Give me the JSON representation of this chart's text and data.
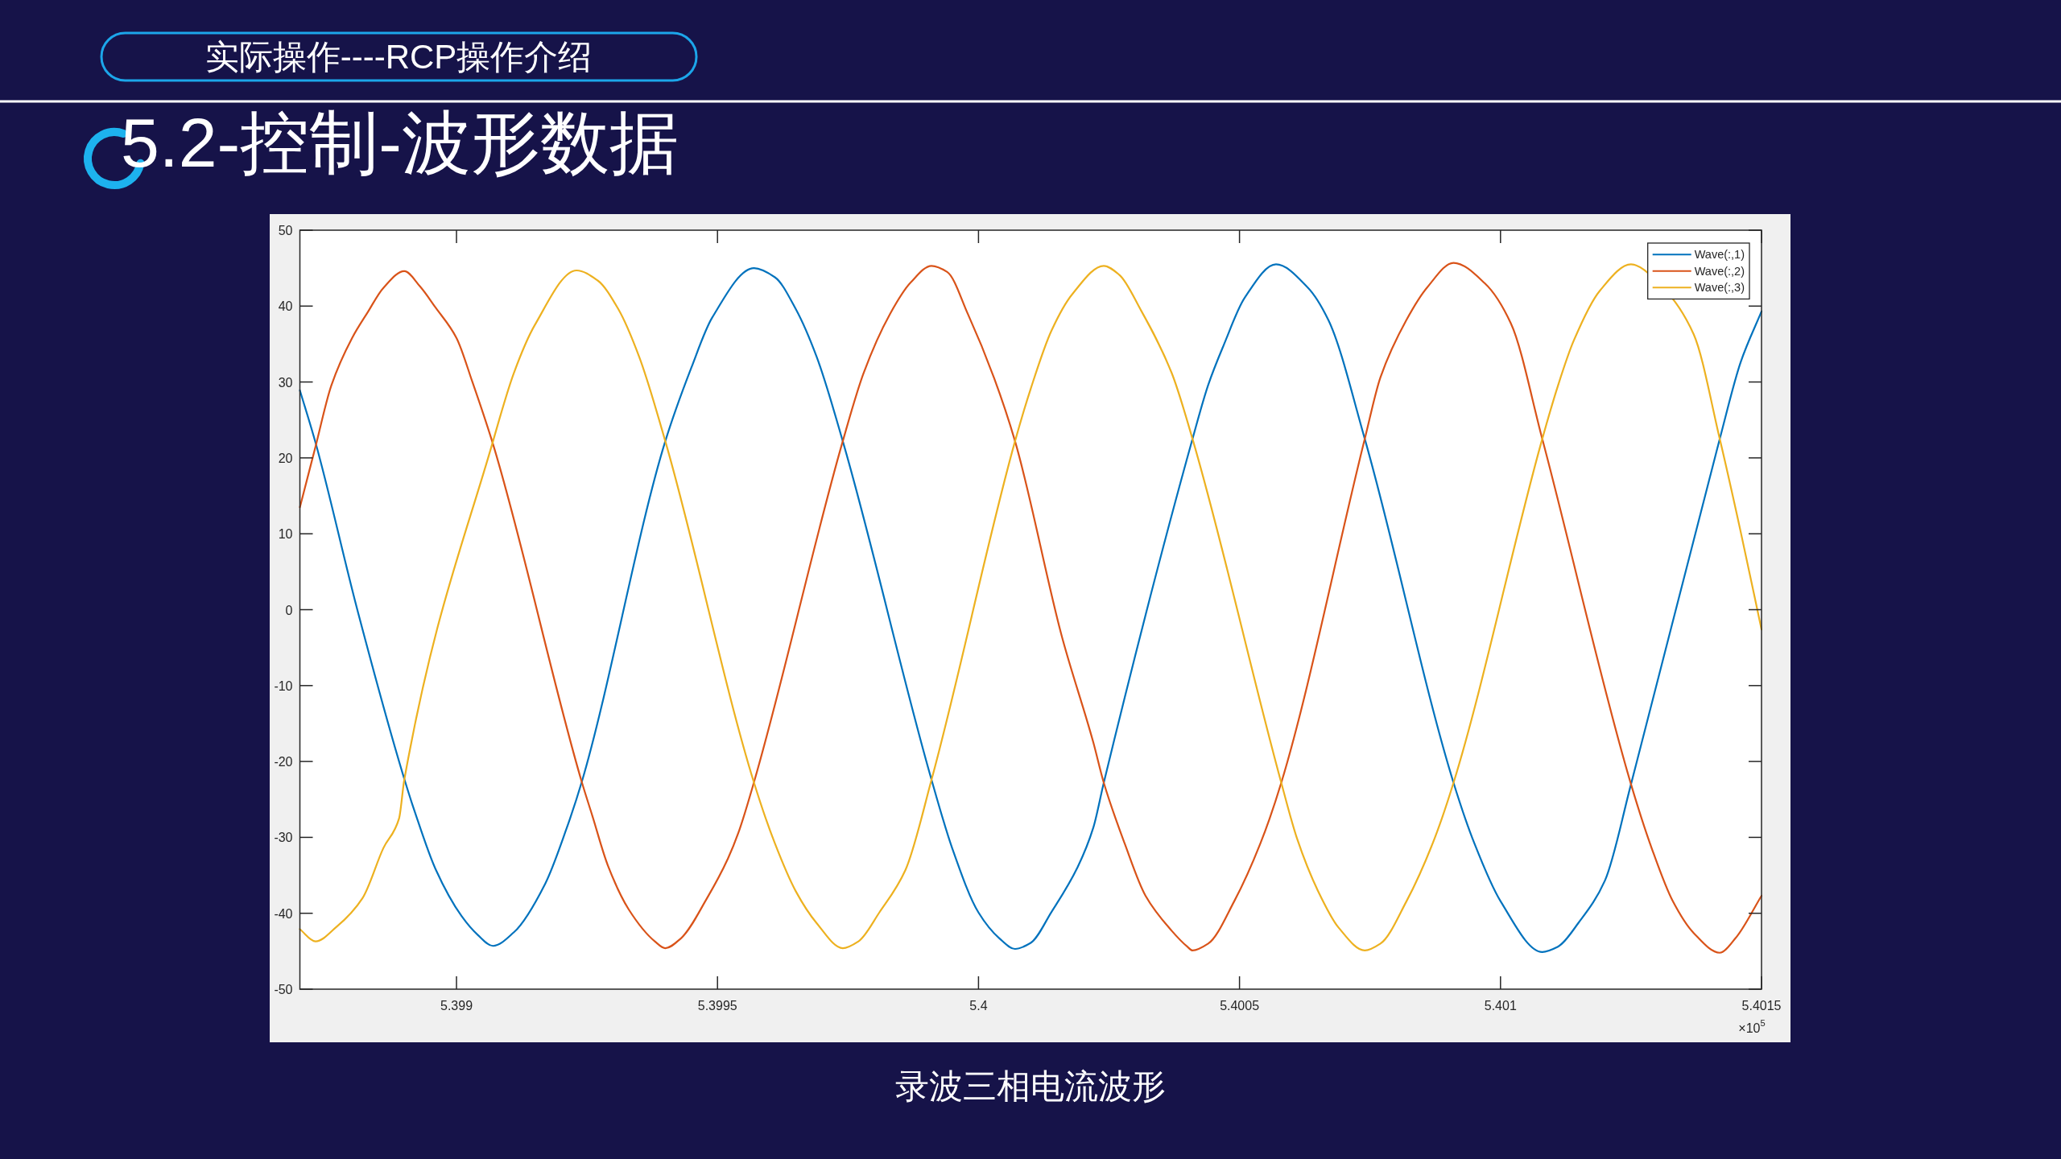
{
  "chart_data": {
    "type": "line",
    "title": "5.2-控制-波形数据",
    "annotations": [
      "实际操作----RCP操作介绍",
      "录波三相电流波形",
      "×10$^{5}$"
    ],
    "xlim": [
      5.3987,
      5.4015
    ],
    "xticks": [
      5.399,
      5.3995,
      5.4,
      5.4005,
      5.401,
      5.4015
    ],
    "ylim": [
      -50,
      50
    ],
    "yticks": [
      -50,
      -40,
      -30,
      -20,
      -10,
      0,
      10,
      20,
      30,
      40,
      50
    ],
    "legend": "top right",
    "series": [
      {
        "name": "Wave(:,1)",
        "color": "#0072bd",
        "x": [
          5.3987,
          5.39873,
          5.39881,
          5.3989,
          5.39892,
          5.39896,
          5.39901,
          5.39904,
          5.39907,
          5.39911,
          5.39917,
          5.39921,
          5.39924,
          5.3994,
          5.39945,
          5.39949,
          5.39957,
          5.39961,
          5.39965,
          5.39969,
          5.39974,
          5.39991,
          5.39995,
          5.4,
          5.40004,
          5.40007,
          5.4001,
          5.40014,
          5.40019,
          5.40022,
          5.40024,
          5.40041,
          5.40044,
          5.40047,
          5.40051,
          5.40057,
          5.40063,
          5.40067,
          5.40074,
          5.40091,
          5.40095,
          5.401,
          5.40108,
          5.40111,
          5.40115,
          5.4012,
          5.40125,
          5.40142,
          5.40146,
          5.4015
        ],
        "values": [
          28.9,
          22.0,
          0.0,
          -22.3,
          -26.6,
          -34.2,
          -40.4,
          -42.8,
          -44.3,
          -42.5,
          -36.1,
          -29.0,
          -22.7,
          22.2,
          31.9,
          38.5,
          45.0,
          43.8,
          39.6,
          33.3,
          22.2,
          -22.4,
          -31.5,
          -39.9,
          -43.3,
          -44.7,
          -43.9,
          -39.8,
          -33.9,
          -28.7,
          -22.8,
          22.5,
          29.6,
          34.9,
          41.1,
          45.5,
          42.5,
          38.2,
          22.5,
          -22.8,
          -30.8,
          -38.4,
          -45.1,
          -44.4,
          -41.2,
          -35.7,
          -23.0,
          22.5,
          32.6,
          39.3
        ]
      },
      {
        "name": "Wave(:,2)",
        "color": "#d95319",
        "x": [
          5.3987,
          5.39873,
          5.39876,
          5.3988,
          5.39883,
          5.39886,
          5.3989,
          5.39893,
          5.39896,
          5.399,
          5.39903,
          5.39907,
          5.39924,
          5.39926,
          5.39929,
          5.39933,
          5.39938,
          5.3994,
          5.39943,
          5.39948,
          5.39952,
          5.39954,
          5.39957,
          5.39974,
          5.39978,
          5.39983,
          5.39987,
          5.39991,
          5.39994,
          5.39998,
          5.40003,
          5.40007,
          5.40016,
          5.40022,
          5.40024,
          5.40028,
          5.40032,
          5.40037,
          5.4004,
          5.40041,
          5.40044,
          5.40049,
          5.40054,
          5.40058,
          5.40074,
          5.40077,
          5.40082,
          5.40086,
          5.40091,
          5.40097,
          5.40102,
          5.40108,
          5.40125,
          5.40129,
          5.40133,
          5.40137,
          5.40142,
          5.40145,
          5.4015
        ],
        "values": [
          13.5,
          21.5,
          29.5,
          35.8,
          39.2,
          42.4,
          44.6,
          42.6,
          39.8,
          35.8,
          30.1,
          21.8,
          -22.7,
          -27.1,
          -33.7,
          -39.5,
          -43.7,
          -44.6,
          -43.3,
          -38.0,
          -32.8,
          -29.4,
          -22.7,
          22.2,
          31.2,
          38.9,
          43.1,
          45.3,
          44.5,
          38.9,
          30.5,
          22.2,
          -3.6,
          -17.5,
          -22.8,
          -30.8,
          -37.7,
          -42.3,
          -44.4,
          -44.9,
          -44.0,
          -38.4,
          -30.8,
          -22.8,
          22.5,
          30.6,
          38.2,
          42.5,
          45.7,
          43.0,
          37.7,
          22.5,
          -23.0,
          -31.5,
          -38.4,
          -42.6,
          -45.2,
          -43.3,
          -37.7
        ]
      },
      {
        "name": "Wave(:,3)",
        "color": "#edb120",
        "x": [
          5.3987,
          5.39873,
          5.39877,
          5.39882,
          5.39886,
          5.39889,
          5.3989,
          5.39907,
          5.39911,
          5.39915,
          5.39923,
          5.39927,
          5.39931,
          5.39935,
          5.3994,
          5.39957,
          5.39961,
          5.39965,
          5.39969,
          5.39974,
          5.39977,
          5.39981,
          5.39986,
          5.39991,
          5.40007,
          5.4001,
          5.40014,
          5.40018,
          5.40024,
          5.40027,
          5.40031,
          5.40037,
          5.40041,
          5.40058,
          5.40061,
          5.40065,
          5.40069,
          5.40074,
          5.40077,
          5.40082,
          5.40087,
          5.40091,
          5.40108,
          5.40111,
          5.40114,
          5.40119,
          5.40125,
          5.40131,
          5.40137,
          5.40142,
          5.40146,
          5.4015
        ],
        "values": [
          -42.1,
          -43.7,
          -41.8,
          -38.0,
          -31.4,
          -27.5,
          -22.4,
          22.2,
          31.2,
          37.5,
          44.7,
          43.4,
          39.6,
          33.3,
          22.2,
          -22.8,
          -30.8,
          -37.1,
          -41.3,
          -44.6,
          -43.7,
          -39.9,
          -34.3,
          -22.4,
          22.2,
          29.1,
          36.8,
          41.6,
          45.3,
          44.1,
          39.6,
          31.2,
          22.5,
          -22.8,
          -30.1,
          -37.0,
          -41.9,
          -44.9,
          -44.0,
          -38.4,
          -30.8,
          -22.8,
          22.5,
          29.5,
          35.4,
          42.0,
          45.5,
          42.5,
          36.3,
          22.5,
          10.3,
          -2.6
        ]
      }
    ]
  }
}
